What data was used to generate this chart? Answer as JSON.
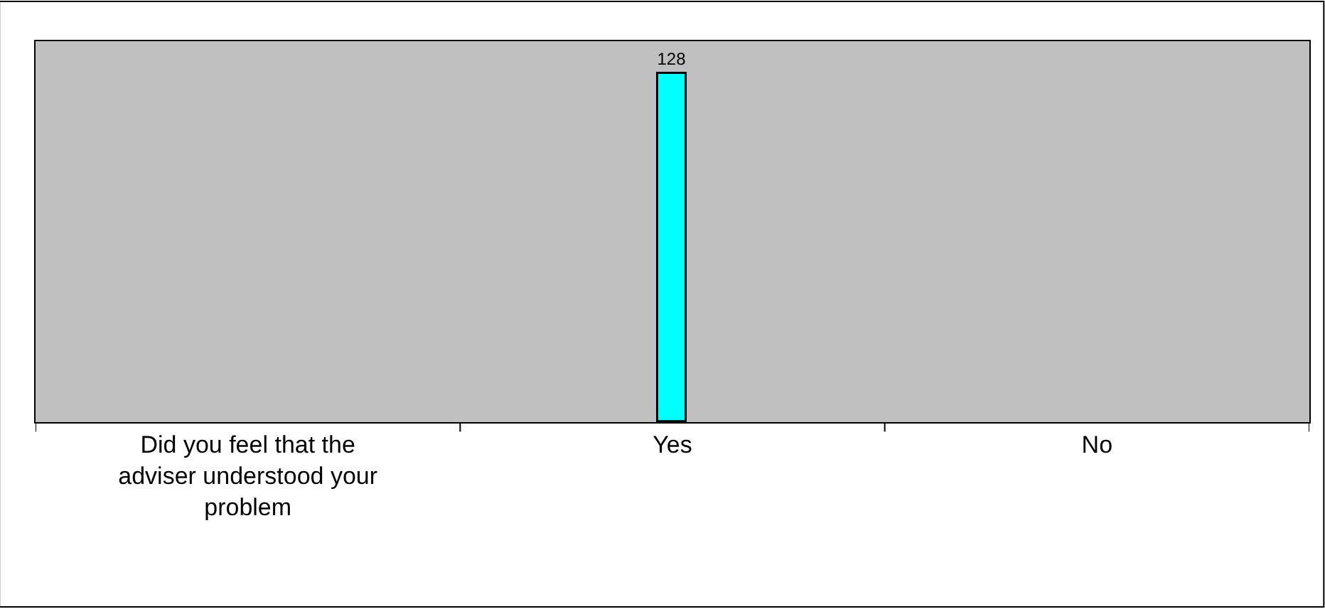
{
  "chart_data": {
    "type": "bar",
    "categories": [
      "Did you feel that the adviser understood your problem",
      "Yes",
      "No"
    ],
    "values": [
      null,
      128,
      null
    ],
    "color": "#00ffff",
    "ylim": [
      0,
      140
    ],
    "data_labels": true,
    "grid": false,
    "legend": false,
    "tick_labels": "x"
  }
}
